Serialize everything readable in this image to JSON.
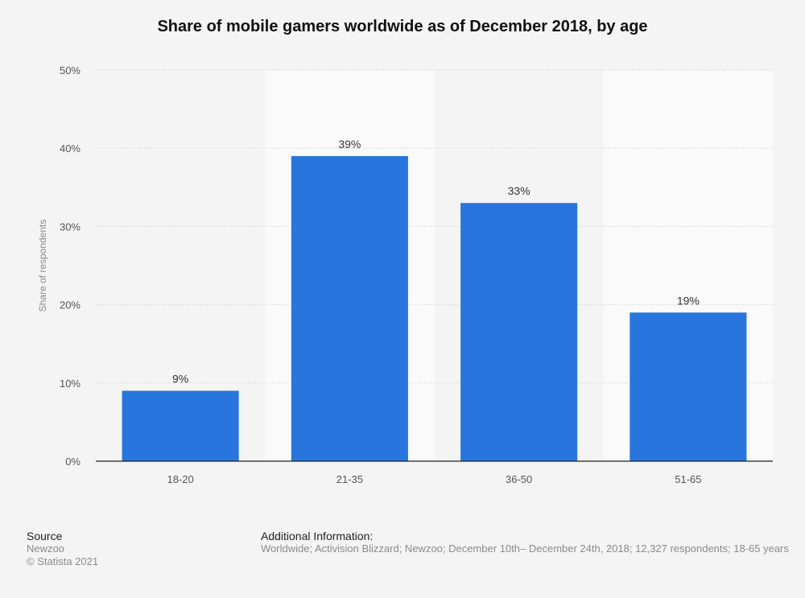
{
  "chart_data": {
    "type": "bar",
    "title": "Share of mobile gamers worldwide as of December 2018, by age",
    "categories": [
      "18-20",
      "21-35",
      "36-50",
      "51-65"
    ],
    "values": [
      9,
      39,
      33,
      19
    ],
    "value_labels": [
      "9%",
      "39%",
      "33%",
      "19%"
    ],
    "ylabel": "Share of respondents",
    "xlabel": "",
    "ylim": [
      0,
      50
    ],
    "yticks": [
      0,
      10,
      20,
      30,
      40,
      50
    ],
    "ytick_labels": [
      "0%",
      "10%",
      "20%",
      "30%",
      "40%",
      "50%"
    ],
    "grid": true,
    "bar_color": "#2876dd"
  },
  "footer": {
    "source_heading": "Source",
    "source_name": "Newzoo",
    "copyright": "© Statista 2021",
    "info_heading": "Additional Information:",
    "info_text": "Worldwide; Activision Blizzard; Newzoo; December 10th– December 24th, 2018; 12,327 respondents; 18-65 years"
  }
}
